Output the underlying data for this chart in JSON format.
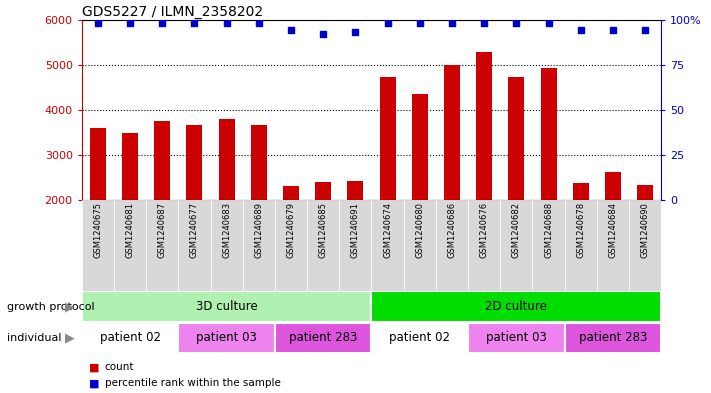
{
  "title": "GDS5227 / ILMN_2358202",
  "samples": [
    "GSM1240675",
    "GSM1240681",
    "GSM1240687",
    "GSM1240677",
    "GSM1240683",
    "GSM1240689",
    "GSM1240679",
    "GSM1240685",
    "GSM1240691",
    "GSM1240674",
    "GSM1240680",
    "GSM1240686",
    "GSM1240676",
    "GSM1240682",
    "GSM1240688",
    "GSM1240678",
    "GSM1240684",
    "GSM1240690"
  ],
  "counts": [
    3600,
    3500,
    3750,
    3680,
    3800,
    3680,
    2330,
    2400,
    2440,
    4720,
    4350,
    5000,
    5280,
    4720,
    4920,
    2380,
    2620,
    2340
  ],
  "percentile_ranks": [
    98,
    98,
    98,
    98,
    98,
    98,
    94,
    92,
    93,
    98,
    98,
    98,
    98,
    98,
    98,
    94,
    94,
    94
  ],
  "bar_color": "#cc0000",
  "dot_color": "#0000cc",
  "ylim_left": [
    2000,
    6000
  ],
  "ylim_right": [
    0,
    100
  ],
  "yticks_left": [
    2000,
    3000,
    4000,
    5000,
    6000
  ],
  "yticks_right": [
    0,
    25,
    50,
    75,
    100
  ],
  "growth_protocol_groups": [
    {
      "label": "3D culture",
      "start": 0,
      "end": 9,
      "color": "#b0f0b0"
    },
    {
      "label": "2D culture",
      "start": 9,
      "end": 18,
      "color": "#00dd00"
    }
  ],
  "individual_groups": [
    {
      "label": "patient 02",
      "start": 0,
      "end": 3,
      "color": "#ffffff"
    },
    {
      "label": "patient 03",
      "start": 3,
      "end": 6,
      "color": "#ee82ee"
    },
    {
      "label": "patient 283",
      "start": 6,
      "end": 9,
      "color": "#dd55dd"
    },
    {
      "label": "patient 02",
      "start": 9,
      "end": 12,
      "color": "#ffffff"
    },
    {
      "label": "patient 03",
      "start": 12,
      "end": 15,
      "color": "#ee82ee"
    },
    {
      "label": "patient 283",
      "start": 15,
      "end": 18,
      "color": "#dd55dd"
    }
  ],
  "growth_protocol_label": "growth protocol",
  "individual_label": "individual",
  "legend_count_label": "count",
  "legend_percentile_label": "percentile rank within the sample",
  "background_color": "#ffffff",
  "plot_bg_color": "#ffffff"
}
